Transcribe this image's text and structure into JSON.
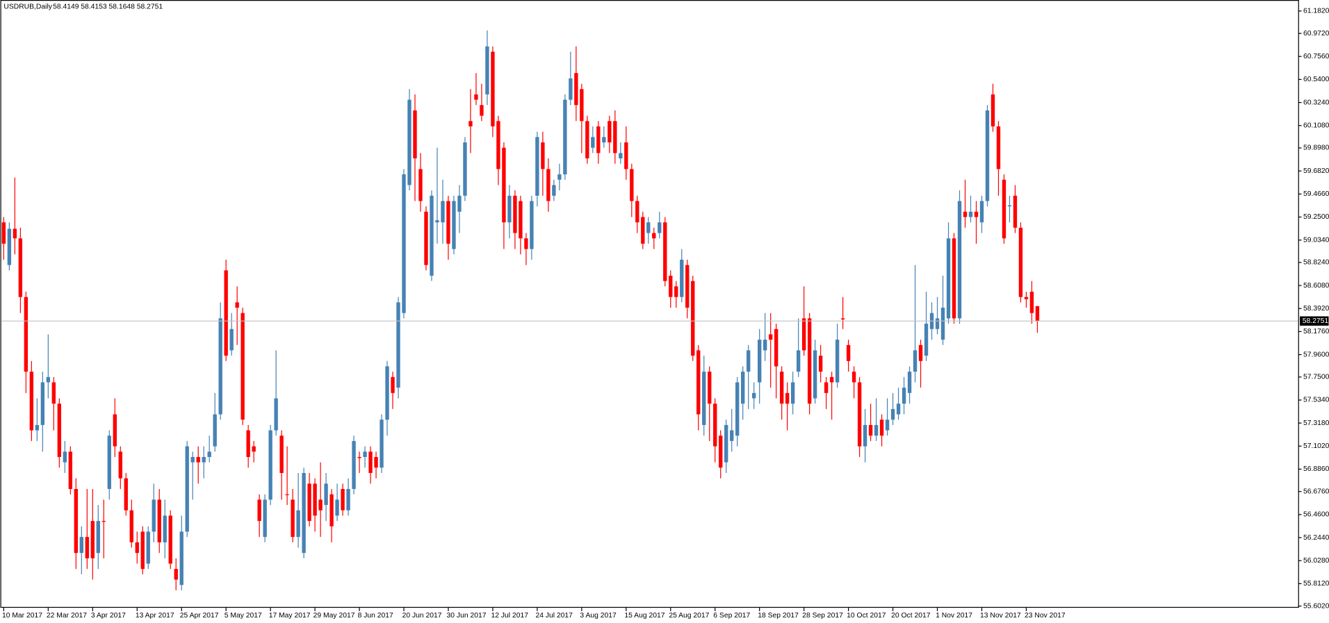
{
  "chart_data": {
    "type": "candlestick",
    "title": "USDRUB,Daily",
    "up_color": "#4682b4",
    "down_color": "#ff0000",
    "x": [
      "10 Mar 2017",
      null,
      null,
      null,
      null,
      null,
      null,
      null,
      "22 Mar 2017",
      null,
      null,
      null,
      null,
      null,
      null,
      null,
      "3 Apr 2017",
      null,
      null,
      null,
      null,
      null,
      null,
      null,
      "13 Apr 2017",
      null,
      null,
      null,
      null,
      null,
      null,
      null,
      "25 Apr 2017",
      null,
      null,
      null,
      null,
      null,
      null,
      null,
      "5 May 2017",
      null,
      null,
      null,
      null,
      null,
      null,
      null,
      "17 May 2017",
      null,
      null,
      null,
      null,
      null,
      null,
      null,
      "29 May 2017",
      null,
      null,
      null,
      null,
      null,
      null,
      null,
      "8 Jun 2017",
      null,
      null,
      null,
      null,
      null,
      null,
      null,
      "20 Jun 2017",
      null,
      null,
      null,
      null,
      null,
      null,
      null,
      "30 Jun 2017",
      null,
      null,
      null,
      null,
      null,
      null,
      null,
      "12 Jul 2017",
      null,
      null,
      null,
      null,
      null,
      null,
      null,
      "24 Jul 2017",
      null,
      null,
      null,
      null,
      null,
      null,
      null,
      "3 Aug 2017",
      null,
      null,
      null,
      null,
      null,
      null,
      null,
      "15 Aug 2017",
      null,
      null,
      null,
      null,
      null,
      null,
      null,
      "25 Aug 2017",
      null,
      null,
      null,
      null,
      null,
      null,
      null,
      "6 Sep 2017",
      null,
      null,
      null,
      null,
      null,
      null,
      null,
      "18 Sep 2017",
      null,
      null,
      null,
      null,
      null,
      null,
      null,
      "28 Sep 2017",
      null,
      null,
      null,
      null,
      null,
      null,
      null,
      "10 Oct 2017",
      null,
      null,
      null,
      null,
      null,
      null,
      null,
      "20 Oct 2017",
      null,
      null,
      null,
      null,
      null,
      null,
      null,
      "1 Nov 2017",
      null,
      null,
      null,
      null,
      null,
      null,
      null,
      "13 Nov 2017",
      null,
      null,
      null,
      null,
      null,
      null,
      null,
      "23 Nov 2017",
      null,
      null
    ],
    "open": [
      59.2,
      58.8,
      59.14,
      59.05,
      58.5,
      57.8,
      57.25,
      57.3,
      57.7,
      57.7,
      57.5,
      56.95,
      57.05,
      56.7,
      56.1,
      56.25,
      56.4,
      56.1,
      56.4,
      56.7,
      57.4,
      57.05,
      56.8,
      56.5,
      56.2,
      56.3,
      56.0,
      56.3,
      56.6,
      56.2,
      56.45,
      55.95,
      55.8,
      56.3,
      56.95,
      57.0,
      56.95,
      57.0,
      57.1,
      57.4,
      58.75,
      58.0,
      58.45,
      58.35,
      57.25,
      57.1,
      56.6,
      56.25,
      56.6,
      57.25,
      57.2,
      56.65,
      56.6,
      56.25,
      56.1,
      56.75,
      56.75,
      56.6,
      56.55,
      56.65,
      56.45,
      56.7,
      56.5,
      56.7,
      57.0,
      57.0,
      57.05,
      57.0,
      56.9,
      57.35,
      57.75,
      57.65,
      58.35,
      59.55,
      60.25,
      59.7,
      59.3,
      58.7,
      59.2,
      59.2,
      59.4,
      58.95,
      59.3,
      59.45,
      60.15,
      60.4,
      60.3,
      60.4,
      60.8,
      60.15,
      59.9,
      59.2,
      59.45,
      59.4,
      59.05,
      58.95,
      59.45,
      59.95,
      59.7,
      59.45,
      59.6,
      59.65,
      60.35,
      60.6,
      60.45,
      60.15,
      59.9,
      60.1,
      59.95,
      60.15,
      60.15,
      59.8,
      59.95,
      59.7,
      59.4,
      59.25,
      59.1,
      59.1,
      59.1,
      59.2,
      58.7,
      58.6,
      58.5,
      58.8,
      58.65,
      58.0,
      57.3,
      57.8,
      57.5,
      57.2,
      56.95,
      57.15,
      57.2,
      57.5,
      57.8,
      57.55,
      57.7,
      58.0,
      58.15,
      58.2,
      57.8,
      57.6,
      57.5,
      57.8,
      58.3,
      58.3,
      57.55,
      57.95,
      57.7,
      57.75,
      57.7,
      58.3,
      58.05,
      57.8,
      57.7,
      57.1,
      57.3,
      57.2,
      57.35,
      57.25,
      57.35,
      57.4,
      57.5,
      57.6,
      57.8,
      58.05,
      57.95,
      58.2,
      58.2,
      58.1,
      58.3,
      59.05,
      58.3,
      59.3,
      59.25,
      59.3,
      59.2,
      59.4,
      60.4,
      60.1,
      59.6,
      59.35,
      59.45,
      59.15,
      58.5,
      58.55,
      58.4149
    ],
    "high": [
      59.25,
      59.2,
      59.62,
      59.15,
      58.55,
      57.9,
      57.55,
      57.8,
      58.15,
      57.75,
      57.55,
      57.15,
      57.1,
      56.8,
      56.35,
      56.7,
      56.7,
      56.55,
      56.6,
      57.25,
      57.55,
      57.1,
      56.85,
      56.6,
      56.3,
      56.35,
      56.35,
      56.75,
      56.7,
      56.6,
      56.5,
      56.05,
      56.45,
      57.15,
      57.05,
      57.1,
      57.1,
      57.2,
      57.6,
      58.45,
      58.85,
      58.35,
      58.6,
      58.4,
      57.3,
      57.15,
      56.65,
      56.65,
      57.3,
      58.0,
      57.25,
      57.1,
      56.7,
      56.85,
      56.9,
      56.85,
      56.8,
      56.95,
      56.85,
      56.7,
      56.75,
      56.75,
      56.8,
      57.2,
      57.05,
      57.1,
      57.1,
      57.05,
      57.4,
      57.9,
      57.8,
      58.5,
      59.7,
      60.45,
      60.4,
      59.85,
      59.35,
      59.5,
      59.9,
      59.6,
      59.45,
      59.45,
      59.55,
      60.0,
      60.45,
      60.6,
      60.5,
      61.0,
      60.85,
      60.2,
      59.95,
      59.55,
      59.5,
      59.45,
      59.1,
      59.45,
      60.05,
      60.05,
      59.8,
      59.6,
      59.75,
      60.4,
      60.8,
      60.85,
      60.5,
      60.2,
      60.1,
      60.15,
      60.1,
      60.2,
      60.25,
      59.95,
      60.1,
      59.75,
      59.45,
      59.3,
      59.25,
      59.15,
      59.3,
      59.25,
      58.75,
      58.65,
      58.95,
      58.85,
      58.7,
      58.05,
      57.95,
      57.85,
      57.55,
      57.25,
      57.35,
      57.45,
      57.75,
      57.85,
      58.05,
      57.7,
      58.2,
      58.35,
      58.35,
      58.25,
      57.85,
      57.7,
      57.8,
      58.3,
      58.6,
      58.35,
      58.1,
      58.05,
      57.75,
      57.8,
      58.25,
      58.5,
      58.1,
      57.85,
      57.75,
      57.45,
      57.5,
      57.55,
      57.4,
      57.55,
      57.6,
      57.65,
      57.75,
      57.85,
      58.8,
      58.1,
      58.55,
      58.45,
      58.5,
      58.7,
      59.2,
      59.1,
      59.5,
      59.6,
      59.45,
      59.4,
      59.45,
      60.3,
      60.5,
      60.15,
      59.65,
      59.45,
      59.55,
      59.2,
      58.55,
      58.65,
      58.4153
    ],
    "low": [
      58.85,
      58.75,
      58.9,
      58.35,
      57.6,
      57.15,
      57.15,
      57.05,
      57.55,
      57.25,
      56.9,
      56.85,
      56.65,
      55.95,
      55.9,
      55.95,
      55.85,
      55.95,
      56.05,
      56.6,
      57.0,
      56.7,
      56.45,
      56.15,
      56.0,
      55.9,
      55.95,
      56.2,
      56.1,
      56.05,
      55.95,
      55.75,
      55.75,
      56.25,
      56.6,
      56.75,
      56.8,
      56.95,
      57.05,
      57.35,
      57.9,
      57.95,
      58.05,
      57.3,
      56.9,
      56.95,
      56.25,
      56.2,
      56.55,
      57.2,
      56.6,
      56.55,
      56.2,
      56.15,
      56.05,
      56.35,
      56.3,
      56.25,
      56.4,
      56.2,
      56.4,
      56.45,
      56.45,
      56.65,
      56.85,
      56.9,
      56.75,
      56.8,
      56.85,
      57.2,
      57.45,
      57.55,
      58.3,
      59.5,
      59.4,
      59.3,
      58.75,
      58.65,
      59.0,
      59.0,
      58.85,
      58.9,
      59.1,
      59.4,
      59.85,
      60.3,
      60.15,
      60.3,
      60.0,
      59.55,
      58.95,
      59.05,
      58.95,
      58.9,
      58.8,
      58.85,
      59.35,
      59.45,
      59.3,
      59.4,
      59.5,
      59.6,
      60.3,
      60.15,
      59.85,
      59.75,
      59.85,
      59.75,
      59.9,
      59.85,
      59.75,
      59.75,
      59.6,
      59.25,
      59.1,
      58.95,
      59.0,
      58.95,
      59.05,
      58.6,
      58.4,
      58.4,
      58.45,
      58.3,
      57.9,
      57.25,
      57.2,
      57.15,
      56.95,
      56.8,
      56.85,
      57.05,
      57.1,
      57.35,
      57.45,
      57.45,
      57.5,
      57.9,
      57.65,
      57.55,
      57.35,
      57.25,
      57.4,
      57.75,
      57.95,
      57.4,
      57.5,
      57.7,
      57.45,
      57.35,
      57.65,
      58.2,
      57.8,
      57.55,
      57.0,
      56.95,
      57.15,
      57.15,
      57.1,
      57.2,
      57.3,
      57.35,
      57.4,
      57.5,
      57.7,
      57.65,
      57.9,
      58.1,
      58.15,
      58.05,
      58.25,
      58.25,
      58.25,
      59.15,
      59.2,
      59.0,
      59.1,
      59.35,
      60.05,
      59.45,
      59.0,
      59.2,
      59.1,
      58.45,
      58.4,
      58.25,
      58.1648
    ],
    "close": [
      59.0,
      59.14,
      59.05,
      58.5,
      57.8,
      57.25,
      57.3,
      57.7,
      57.75,
      57.5,
      57.0,
      57.05,
      56.7,
      56.1,
      56.25,
      56.05,
      56.05,
      56.4,
      56.4,
      57.2,
      57.1,
      56.8,
      56.5,
      56.2,
      56.1,
      55.95,
      56.3,
      56.6,
      56.2,
      56.45,
      56.0,
      55.85,
      56.3,
      57.1,
      57.0,
      56.95,
      57.0,
      57.05,
      57.4,
      58.3,
      57.95,
      58.2,
      58.4,
      57.35,
      57.0,
      57.05,
      56.4,
      56.6,
      57.25,
      57.55,
      56.85,
      56.65,
      56.25,
      56.5,
      56.85,
      56.4,
      56.45,
      56.5,
      56.75,
      56.35,
      56.6,
      56.5,
      56.7,
      57.15,
      56.99,
      57.05,
      56.85,
      56.9,
      57.35,
      57.85,
      57.6,
      58.45,
      59.65,
      60.35,
      59.8,
      59.4,
      58.8,
      59.45,
      59.22,
      59.4,
      59.0,
      59.4,
      59.45,
      59.95,
      60.1,
      60.35,
      60.2,
      60.85,
      60.1,
      59.7,
      59.2,
      59.45,
      59.1,
      59.05,
      58.95,
      59.4,
      60.0,
      59.7,
      59.4,
      59.55,
      59.65,
      60.35,
      60.55,
      60.3,
      60.15,
      59.8,
      60.0,
      59.85,
      60.0,
      59.95,
      59.85,
      59.85,
      59.7,
      59.4,
      59.2,
      59.0,
      59.2,
      59.05,
      59.2,
      58.65,
      58.5,
      58.5,
      58.85,
      58.4,
      57.95,
      57.4,
      57.8,
      57.5,
      57.1,
      56.9,
      57.3,
      57.25,
      57.7,
      57.8,
      58.0,
      57.6,
      58.1,
      58.1,
      58.1,
      57.85,
      57.5,
      57.5,
      57.7,
      58.0,
      58.0,
      57.5,
      58.0,
      57.8,
      57.6,
      57.7,
      58.1,
      58.29,
      57.9,
      57.7,
      57.1,
      57.3,
      57.2,
      57.3,
      57.2,
      57.35,
      57.45,
      57.5,
      57.65,
      57.8,
      58.0,
      57.9,
      58.25,
      58.35,
      58.3,
      58.4,
      59.05,
      58.3,
      59.4,
      59.25,
      59.3,
      59.25,
      59.4,
      60.25,
      60.1,
      59.7,
      59.05,
      59.36,
      59.15,
      58.5,
      58.48,
      58.35,
      58.2751
    ],
    "ylim": [
      55.602,
      61.182
    ],
    "yticks": [
      {
        "value": 61.182,
        "label": "61.1820"
      },
      {
        "value": 60.972,
        "label": "60.9720"
      },
      {
        "value": 60.756,
        "label": "60.7560"
      },
      {
        "value": 60.54,
        "label": "60.5400"
      },
      {
        "value": 60.324,
        "label": "60.3240"
      },
      {
        "value": 60.108,
        "label": "60.1080"
      },
      {
        "value": 59.898,
        "label": "59.8980"
      },
      {
        "value": 59.682,
        "label": "59.6820"
      },
      {
        "value": 59.466,
        "label": "59.4660"
      },
      {
        "value": 59.25,
        "label": "59.2500"
      },
      {
        "value": 59.034,
        "label": "59.0340"
      },
      {
        "value": 58.824,
        "label": "58.8240"
      },
      {
        "value": 58.608,
        "label": "58.6080"
      },
      {
        "value": 58.392,
        "label": "58.3920"
      },
      {
        "value": 58.176,
        "label": "58.1760"
      },
      {
        "value": 57.96,
        "label": "57.9600"
      },
      {
        "value": 57.75,
        "label": "57.7500"
      },
      {
        "value": 57.534,
        "label": "57.5340"
      },
      {
        "value": 57.318,
        "label": "57.3180"
      },
      {
        "value": 57.102,
        "label": "57.1020"
      },
      {
        "value": 56.886,
        "label": "56.8860"
      },
      {
        "value": 56.676,
        "label": "56.6760"
      },
      {
        "value": 56.46,
        "label": "56.4600"
      },
      {
        "value": 56.244,
        "label": "56.2440"
      },
      {
        "value": 56.028,
        "label": "56.0280"
      },
      {
        "value": 55.812,
        "label": "55.8120"
      },
      {
        "value": 55.602,
        "label": "55.6020"
      }
    ]
  }
}
